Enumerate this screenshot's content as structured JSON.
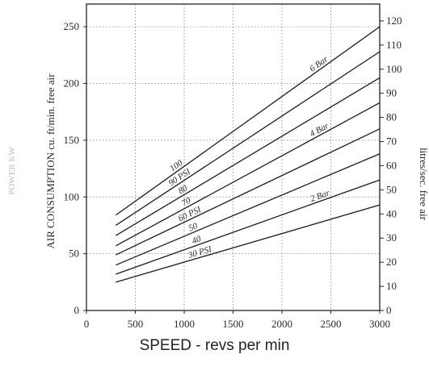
{
  "chart_data": {
    "type": "line",
    "xlabel": "SPEED - revs per min",
    "ylabel_left": "AIR CONSUMPTION cu. ft/min. free air",
    "ylabel_right": "litres/sec. free air",
    "ylabel_faint": "POWER KW",
    "xlim": [
      0,
      3000
    ],
    "ylim": [
      0,
      270
    ],
    "ylim_right": [
      0,
      127
    ],
    "x_ticks": [
      0,
      500,
      1000,
      1500,
      2000,
      2500,
      3000
    ],
    "y_ticks_left": [
      0,
      50,
      100,
      150,
      200,
      250
    ],
    "y_ticks_right": [
      0,
      10,
      20,
      30,
      40,
      50,
      60,
      70,
      80,
      90,
      100,
      110,
      120
    ],
    "grid": true,
    "line_color": "#1a1a1a",
    "series": [
      {
        "psi": "100",
        "bar": "6 Bar",
        "x": [
          300,
          3000
        ],
        "y": [
          84,
          250
        ]
      },
      {
        "psi": "90 PSI",
        "bar": "",
        "x": [
          300,
          3000
        ],
        "y": [
          75,
          228
        ]
      },
      {
        "psi": "80",
        "bar": "",
        "x": [
          300,
          3000
        ],
        "y": [
          66,
          205
        ]
      },
      {
        "psi": "70",
        "bar": "4 Bar",
        "x": [
          300,
          3000
        ],
        "y": [
          57,
          183
        ]
      },
      {
        "psi": "60 PSI",
        "bar": "",
        "x": [
          300,
          3000
        ],
        "y": [
          49,
          160
        ]
      },
      {
        "psi": "50",
        "bar": "",
        "x": [
          300,
          3000
        ],
        "y": [
          40,
          138
        ]
      },
      {
        "psi": "40",
        "bar": "2 Bar",
        "x": [
          300,
          3000
        ],
        "y": [
          32,
          115
        ]
      },
      {
        "psi": "30 PSI",
        "bar": "",
        "x": [
          300,
          3000
        ],
        "y": [
          25,
          93
        ]
      }
    ]
  }
}
